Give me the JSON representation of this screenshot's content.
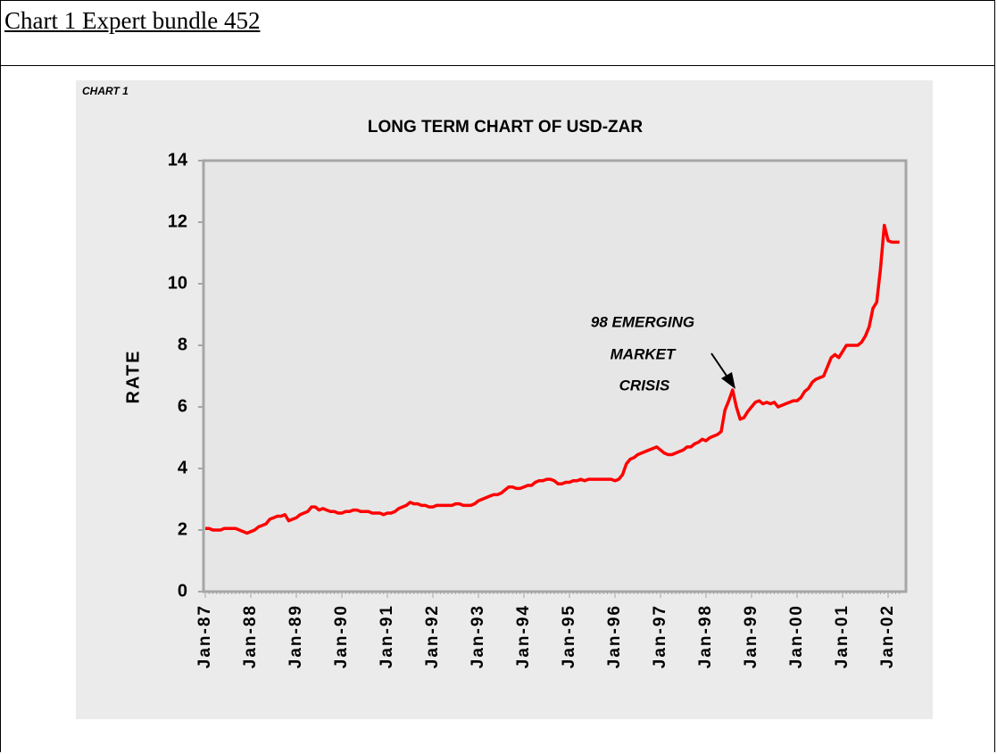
{
  "header": {
    "title": "Chart 1 Expert bundle 452"
  },
  "chart_data": {
    "type": "line",
    "label": "CHART 1",
    "title": "LONG TERM CHART OF USD-ZAR",
    "y_label": "RATE",
    "annotation": [
      "98 EMERGING",
      "MARKET",
      "CRISIS"
    ],
    "categories": [
      "Jan-87",
      null,
      null,
      null,
      null,
      null,
      null,
      null,
      null,
      null,
      null,
      null,
      "Jan-88",
      null,
      null,
      null,
      null,
      null,
      null,
      null,
      null,
      null,
      null,
      null,
      "Jan-89",
      null,
      null,
      null,
      null,
      null,
      null,
      null,
      null,
      null,
      null,
      null,
      "Jan-90",
      null,
      null,
      null,
      null,
      null,
      null,
      null,
      null,
      null,
      null,
      null,
      "Jan-91",
      null,
      null,
      null,
      null,
      null,
      null,
      null,
      null,
      null,
      null,
      null,
      "Jan-92",
      null,
      null,
      null,
      null,
      null,
      null,
      null,
      null,
      null,
      null,
      null,
      "Jan-93",
      null,
      null,
      null,
      null,
      null,
      null,
      null,
      null,
      null,
      null,
      null,
      "Jan-94",
      null,
      null,
      null,
      null,
      null,
      null,
      null,
      null,
      null,
      null,
      null,
      "Jan-95",
      null,
      null,
      null,
      null,
      null,
      null,
      null,
      null,
      null,
      null,
      null,
      "Jan-96",
      null,
      null,
      null,
      null,
      null,
      null,
      null,
      null,
      null,
      null,
      null,
      "Jan-97",
      null,
      null,
      null,
      null,
      null,
      null,
      null,
      null,
      null,
      null,
      null,
      "Jan-98",
      null,
      null,
      null,
      null,
      null,
      null,
      null,
      null,
      null,
      null,
      null,
      "Jan-99",
      null,
      null,
      null,
      null,
      null,
      null,
      null,
      null,
      null,
      null,
      null,
      "Jan-00",
      null,
      null,
      null,
      null,
      null,
      null,
      null,
      null,
      null,
      null,
      null,
      "Jan-01",
      null,
      null,
      null,
      null,
      null,
      null,
      null,
      null,
      null,
      null,
      null,
      "Jan-02",
      null,
      null,
      null
    ],
    "values": [
      2.05,
      2.05,
      2.0,
      2.0,
      2.0,
      2.05,
      2.05,
      2.05,
      2.05,
      2.0,
      1.95,
      1.9,
      1.95,
      2.0,
      2.1,
      2.15,
      2.2,
      2.35,
      2.4,
      2.45,
      2.45,
      2.5,
      2.3,
      2.35,
      2.4,
      2.5,
      2.55,
      2.6,
      2.75,
      2.75,
      2.65,
      2.7,
      2.65,
      2.6,
      2.6,
      2.55,
      2.55,
      2.6,
      2.6,
      2.65,
      2.65,
      2.6,
      2.6,
      2.6,
      2.55,
      2.55,
      2.55,
      2.5,
      2.55,
      2.55,
      2.6,
      2.7,
      2.75,
      2.8,
      2.9,
      2.85,
      2.85,
      2.8,
      2.8,
      2.75,
      2.75,
      2.8,
      2.8,
      2.8,
      2.8,
      2.8,
      2.85,
      2.85,
      2.8,
      2.8,
      2.8,
      2.85,
      2.95,
      3.0,
      3.05,
      3.1,
      3.15,
      3.15,
      3.2,
      3.3,
      3.4,
      3.4,
      3.35,
      3.35,
      3.4,
      3.45,
      3.45,
      3.55,
      3.6,
      3.6,
      3.65,
      3.65,
      3.6,
      3.5,
      3.5,
      3.55,
      3.55,
      3.6,
      3.6,
      3.65,
      3.6,
      3.65,
      3.65,
      3.65,
      3.65,
      3.65,
      3.65,
      3.65,
      3.6,
      3.65,
      3.8,
      4.15,
      4.3,
      4.35,
      4.45,
      4.5,
      4.55,
      4.6,
      4.65,
      4.7,
      4.6,
      4.5,
      4.45,
      4.45,
      4.5,
      4.55,
      4.6,
      4.7,
      4.7,
      4.8,
      4.85,
      4.95,
      4.9,
      5.0,
      5.05,
      5.1,
      5.2,
      5.9,
      6.2,
      6.55,
      6.0,
      5.6,
      5.65,
      5.85,
      6.0,
      6.15,
      6.2,
      6.1,
      6.15,
      6.1,
      6.15,
      6.0,
      6.05,
      6.1,
      6.15,
      6.2,
      6.2,
      6.3,
      6.5,
      6.6,
      6.8,
      6.9,
      6.95,
      7.0,
      7.3,
      7.6,
      7.7,
      7.6,
      7.8,
      8.0,
      8.0,
      8.0,
      8.0,
      8.1,
      8.3,
      8.6,
      9.2,
      9.4,
      10.5,
      11.9,
      11.4,
      11.35,
      11.35,
      11.35
    ],
    "color": "#ff0000",
    "ylim": [
      0,
      14
    ],
    "yticks": [
      0,
      2,
      4,
      6,
      8,
      10,
      12,
      14
    ]
  }
}
